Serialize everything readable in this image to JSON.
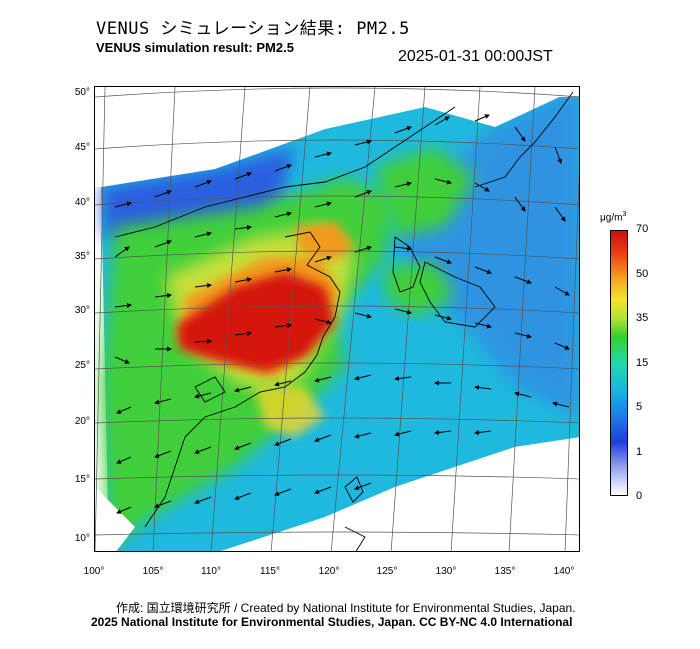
{
  "title_ja": "VENUS シミュレーション結果: PM2.5",
  "title_en": "VENUS simulation result: PM2.5",
  "timestamp": "2025-01-31 00:00JST",
  "colorbar": {
    "unit_main": "μg/m",
    "unit_sup": "3",
    "ticks": [
      "70",
      "50",
      "35",
      "15",
      "5",
      "1",
      "0"
    ]
  },
  "axes": {
    "lat_labels": [
      "50°",
      "45°",
      "40°",
      "35°",
      "30°",
      "25°",
      "20°",
      "15°",
      "10°"
    ],
    "lon_labels": [
      "100°",
      "105°",
      "110°",
      "115°",
      "120°",
      "125°",
      "130°",
      "135°",
      "140°"
    ]
  },
  "credits": {
    "line1": "作成: 国立環境研究所 / Created by National Institute for Environmental Studies, Japan.",
    "line2": "2025 National Institute for Environmental Studies, Japan. CC BY-NC 4.0 International"
  },
  "colors": {
    "very_high": "#d4130f",
    "high": "#f29a1f",
    "mid_high": "#c7e03a",
    "mid": "#3fcf3a",
    "low": "#1fb6dc",
    "very_low": "#2a5fe0",
    "background_sea": "#22c0e0"
  }
}
